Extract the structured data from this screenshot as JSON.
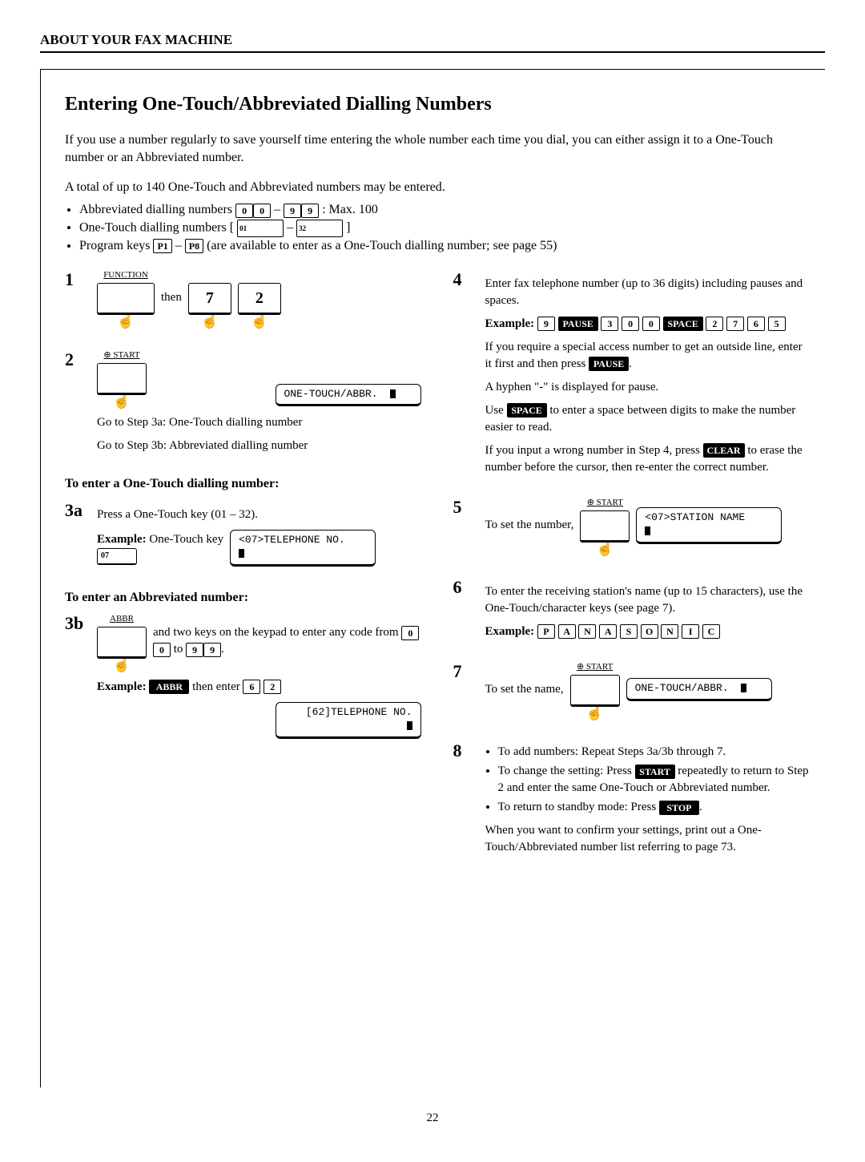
{
  "header": "ABOUT YOUR FAX MACHINE",
  "title": "Entering One-Touch/Abbreviated Dialling Numbers",
  "intro": "If you use a number regularly to save yourself time entering the whole number each time you dial, you can either assign it to a One-Touch number or an Abbreviated number.",
  "limits_lead": "A total of up to 140 One-Touch and Abbreviated numbers may be entered.",
  "limits": {
    "abbr_prefix": "Abbreviated dialling numbers ",
    "abbr_suffix": ": Max. 100",
    "abbr_keys": [
      "0",
      "0",
      "9",
      "9"
    ],
    "ot_prefix": "One-Touch dialling numbers [ ",
    "ot_dash": " – ",
    "ot_suffix": " ]",
    "ot_keys": [
      "01",
      "32"
    ],
    "prog_prefix": "Program keys ",
    "prog_keys": [
      "P1",
      "P8"
    ],
    "prog_suffix": " (are available to enter as a One-Touch dialling number; see page 55)"
  },
  "left": {
    "s1": {
      "num": "1",
      "func_label": "FUNCTION",
      "then": "then",
      "keys": [
        "7",
        "2"
      ]
    },
    "s2": {
      "num": "2",
      "start_label": "⊕ START",
      "lcd": "ONE-TOUCH/ABBR.",
      "goto_a": "Go to Step 3a: One-Touch dialling number",
      "goto_b": "Go to Step 3b: Abbreviated dialling number"
    },
    "ot_head": "To enter a One-Touch dialling number:",
    "s3a": {
      "num": "3a",
      "text": "Press a One-Touch key (01 – 32).",
      "ex_label": "Example:",
      "ex_text": " One-Touch key",
      "key": "07",
      "lcd": "<07>TELEPHONE NO."
    },
    "ab_head": "To enter an Abbreviated number:",
    "s3b": {
      "num": "3b",
      "abbr_label": "ABBR",
      "text1": "and two keys on the keypad to enter any code from ",
      "kp_from": [
        "0",
        "0"
      ],
      "kp_to": [
        "9",
        "9"
      ],
      "text_to": " to ",
      "ex_label": "Example:",
      "abbr_key": "ABBR",
      "ex_text": " then enter ",
      "ex_keys": [
        "6",
        "2"
      ],
      "lcd": "[62]TELEPHONE NO."
    }
  },
  "right": {
    "s4": {
      "num": "4",
      "p1": "Enter fax telephone number (up to 36 digits) including pauses and spaces.",
      "ex_label": "Example:",
      "ex_keys": [
        {
          "t": "9",
          "inv": false
        },
        {
          "t": "PAUSE",
          "inv": true,
          "wide": true
        },
        {
          "t": "3",
          "inv": false
        },
        {
          "t": "0",
          "inv": false
        },
        {
          "t": "0",
          "inv": false
        },
        {
          "t": "SPACE",
          "inv": true,
          "wide": true
        },
        {
          "t": "2",
          "inv": false
        },
        {
          "t": "7",
          "inv": false
        },
        {
          "t": "6",
          "inv": false
        },
        {
          "t": "5",
          "inv": false
        }
      ],
      "p2a": "If you require a special access number to get an outside line, enter it first and then press ",
      "pause_key": "PAUSE",
      "p2b": ".",
      "p3": "A hyphen \"-\" is displayed for pause.",
      "p4a": "Use ",
      "space_key": "SPACE",
      "p4b": " to enter a space between digits to make the number easier to read.",
      "p5a": "If you input a wrong number in Step 4, press ",
      "clear_key": "CLEAR",
      "p5b": " to erase the number before the cursor, then re-enter the correct number."
    },
    "s5": {
      "num": "5",
      "text": "To set the number,",
      "start_label": "⊕ START",
      "lcd": "<07>STATION NAME"
    },
    "s6": {
      "num": "6",
      "p1": "To enter the receiving station's name (up to 15 characters), use the One-Touch/character keys (see page 7).",
      "ex_label": "Example:",
      "ex_keys": [
        "P",
        "A",
        "N",
        "A",
        "S",
        "O",
        "N",
        "I",
        "C"
      ]
    },
    "s7": {
      "num": "7",
      "text": "To set the name,",
      "start_label": "⊕ START",
      "lcd": "ONE-TOUCH/ABBR."
    },
    "s8": {
      "num": "8",
      "b1": "To add numbers:  Repeat Steps 3a/3b through 7.",
      "b2a": "To change the setting:  Press ",
      "start_key": "START",
      "b2b": " repeatedly to return to Step 2 and enter the same One-Touch or Abbreviated number.",
      "b3a": "To return to standby mode:  Press ",
      "stop_key": "STOP",
      "b3b": ".",
      "p_final": "When you want to confirm your settings, print out a One-Touch/Abbreviated number list referring to page 73."
    }
  },
  "page_number": "22"
}
